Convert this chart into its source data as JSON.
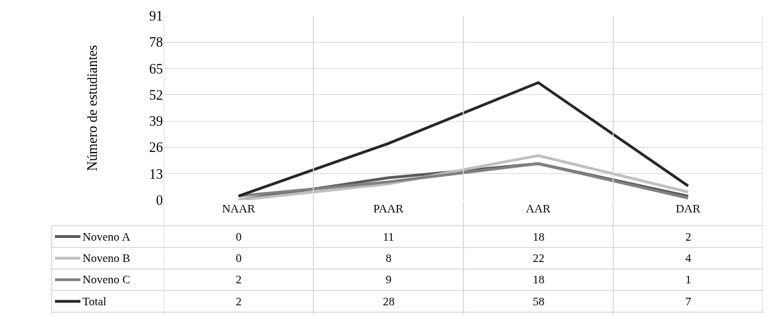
{
  "chart_data": {
    "type": "line",
    "ylabel": "Número de estudiantes",
    "categories": [
      "NAAR",
      "PAAR",
      "AAR",
      "DAR"
    ],
    "series": [
      {
        "name": "Noveno A",
        "color": "#595959",
        "values": [
          0,
          11,
          18,
          2
        ]
      },
      {
        "name": "Noveno B",
        "color": "#bfbfbf",
        "values": [
          0,
          8,
          22,
          4
        ]
      },
      {
        "name": "Noveno C",
        "color": "#808080",
        "values": [
          2,
          9,
          18,
          1
        ]
      },
      {
        "name": "Total",
        "color": "#262626",
        "values": [
          2,
          28,
          58,
          7
        ]
      }
    ],
    "ylim": [
      0,
      91
    ],
    "yticks": [
      0,
      13,
      26,
      39,
      52,
      65,
      78,
      91
    ],
    "grid": true,
    "legend": "bottom",
    "data_labels": true,
    "marker": "none",
    "line_style": "solid"
  }
}
